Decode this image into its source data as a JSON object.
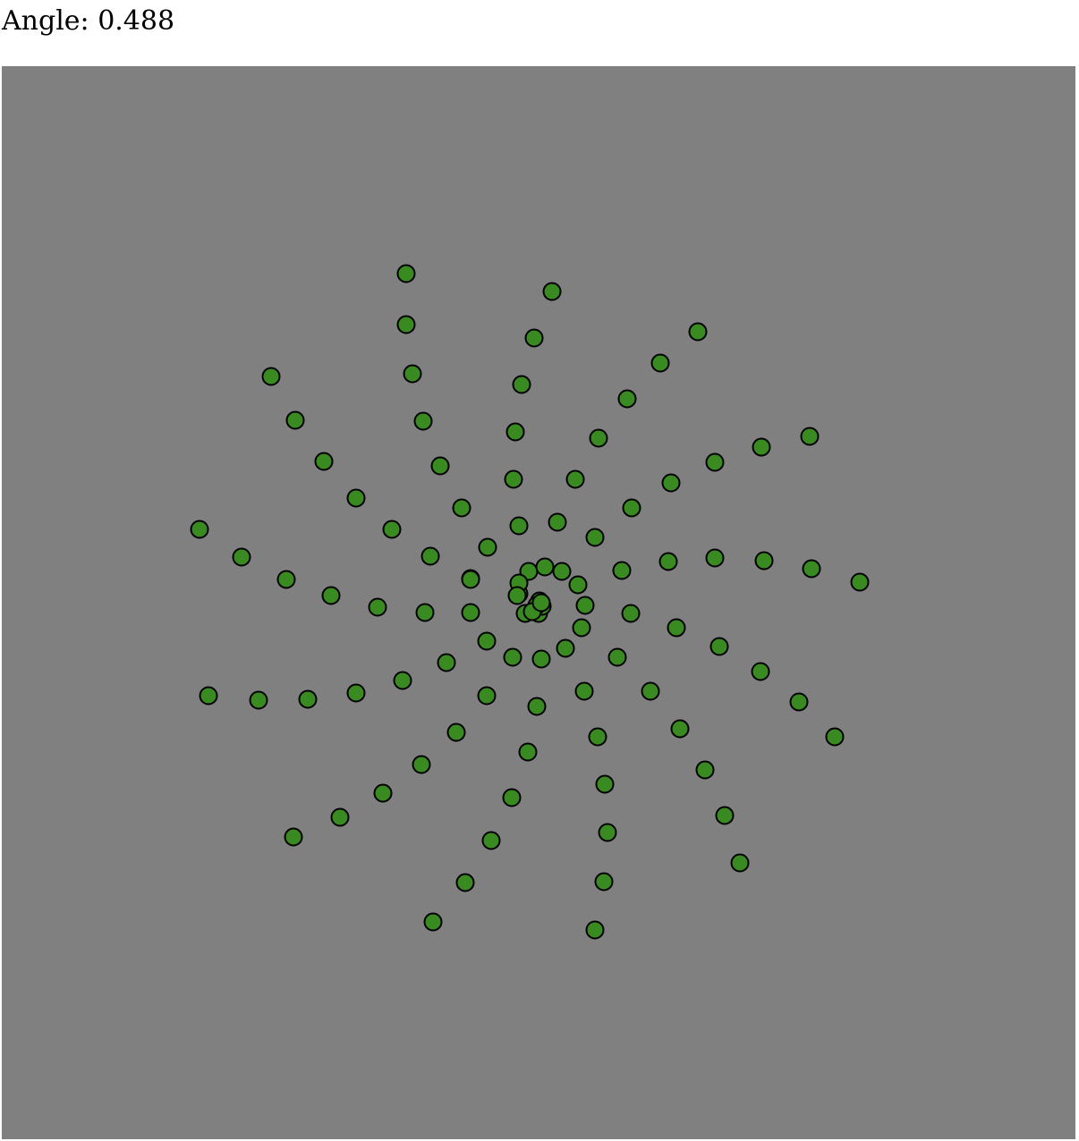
{
  "readout": {
    "label": "Angle: ",
    "value": "0.488"
  },
  "angle": 0.488,
  "colors": {
    "canvas": "#808080",
    "dot_fill": "#3a8a22",
    "dot_stroke": "#000000",
    "text": "#000000"
  }
}
